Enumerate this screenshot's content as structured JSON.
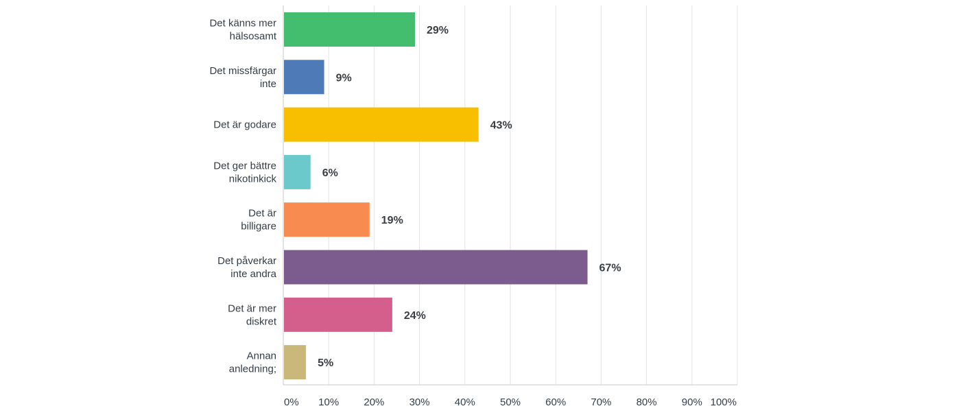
{
  "chart_data": {
    "type": "bar",
    "orientation": "horizontal",
    "categories": [
      [
        "Det känns mer",
        "hälsosamt"
      ],
      [
        "Det missfärgar",
        "inte"
      ],
      [
        "Det är godare"
      ],
      [
        "Det ger bättre",
        "nikotinkick"
      ],
      [
        "Det är",
        "billigare"
      ],
      [
        "Det påverkar",
        "inte andra"
      ],
      [
        "Det är mer",
        "diskret"
      ],
      [
        "Annan",
        "anledning;"
      ]
    ],
    "values": [
      29,
      9,
      43,
      6,
      19,
      67,
      24,
      5
    ],
    "value_labels": [
      "29%",
      "9%",
      "43%",
      "6%",
      "19%",
      "67%",
      "24%",
      "5%"
    ],
    "colors": [
      "#42be6e",
      "#4f7ab8",
      "#f7bf00",
      "#6cc9cb",
      "#f78b50",
      "#7c5c8e",
      "#d45f8c",
      "#c9b87a"
    ],
    "xlim": [
      0,
      100
    ],
    "xticks": [
      0,
      10,
      20,
      30,
      40,
      50,
      60,
      70,
      80,
      90,
      100
    ],
    "xtick_labels": [
      "0%",
      "10%",
      "20%",
      "30%",
      "40%",
      "50%",
      "60%",
      "70%",
      "80%",
      "90%",
      "100%"
    ],
    "grid": true,
    "title": "",
    "xlabel": "",
    "ylabel": ""
  }
}
